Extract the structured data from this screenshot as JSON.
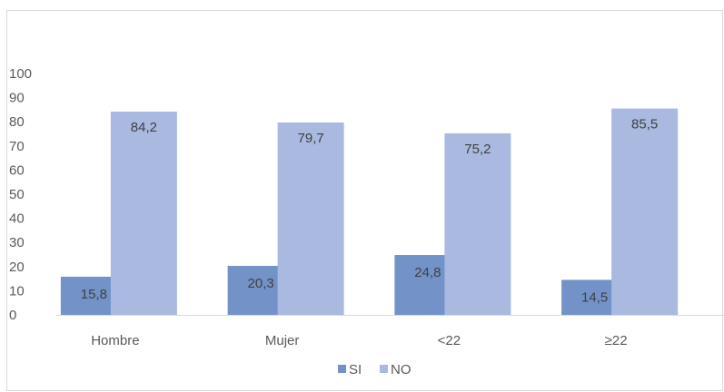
{
  "chart_data": {
    "type": "bar",
    "title": "",
    "xlabel": "",
    "ylabel": "",
    "ylim": [
      0,
      100
    ],
    "yticks": [
      0,
      10,
      20,
      30,
      40,
      50,
      60,
      70,
      80,
      90,
      100
    ],
    "categories": [
      "Hombre",
      "Mujer",
      "<22",
      "≥22"
    ],
    "series": [
      {
        "name": "SI",
        "values": [
          15.8,
          20.3,
          24.8,
          14.5
        ],
        "labels": [
          "15,8",
          "20,3",
          "24,8",
          "14,5"
        ],
        "color": "#7392c8"
      },
      {
        "name": "NO",
        "values": [
          84.2,
          79.7,
          75.2,
          85.5
        ],
        "labels": [
          "84,2",
          "79,7",
          "75,2",
          "85,5"
        ],
        "color": "#a9b9e0"
      }
    ],
    "grid": false,
    "legend_position": "bottom"
  }
}
